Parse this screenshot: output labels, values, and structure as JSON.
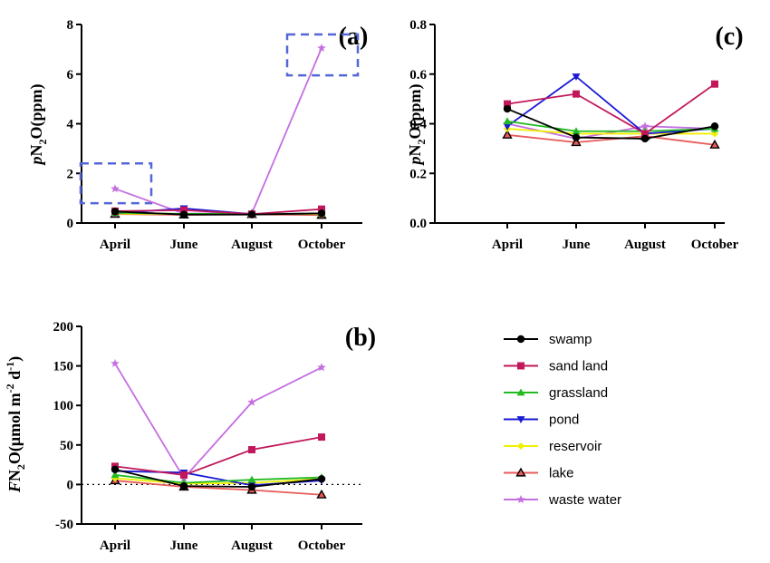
{
  "chart_data": [
    {
      "type": "line",
      "panel": "(a)",
      "ylabel_parts": [
        "p",
        "N",
        "2",
        "O(ppm)"
      ],
      "categories": [
        "April",
        "June",
        "August",
        "October"
      ],
      "ylim": [
        0,
        8
      ],
      "yticks": [
        0,
        2,
        4,
        6,
        8
      ],
      "series": [
        {
          "name": "swamp",
          "values": [
            0.46,
            0.34,
            0.34,
            0.39
          ]
        },
        {
          "name": "sand land",
          "values": [
            0.48,
            0.52,
            0.36,
            0.56
          ]
        },
        {
          "name": "grassland",
          "values": [
            0.41,
            0.37,
            0.37,
            0.38
          ]
        },
        {
          "name": "pond",
          "values": [
            0.39,
            0.59,
            0.36,
            0.38
          ]
        },
        {
          "name": "reservoir",
          "values": [
            0.38,
            0.36,
            0.36,
            0.36
          ]
        },
        {
          "name": "lake",
          "values": [
            0.36,
            0.33,
            0.35,
            0.32
          ]
        },
        {
          "name": "waste water",
          "values": [
            1.38,
            0.38,
            0.39,
            7.05
          ]
        }
      ],
      "highlight_boxes": [
        {
          "x_from": "April",
          "y_range": [
            0.8,
            2.4
          ]
        },
        {
          "x_from": "October",
          "y_range": [
            5.95,
            7.6
          ]
        }
      ]
    },
    {
      "type": "line",
      "panel": "(c)",
      "ylabel_parts": [
        "p",
        "N",
        "2",
        "O(ppm)"
      ],
      "categories": [
        "April",
        "June",
        "August",
        "October"
      ],
      "ylim": [
        0,
        0.8
      ],
      "yticks": [
        "0.0",
        "0.2",
        "0.4",
        "0.6",
        "0.8"
      ],
      "series": [
        {
          "name": "swamp",
          "values": [
            0.46,
            0.345,
            0.34,
            0.39
          ]
        },
        {
          "name": "sand land",
          "values": [
            0.48,
            0.52,
            0.36,
            0.56
          ]
        },
        {
          "name": "grassland",
          "values": [
            0.41,
            0.37,
            0.37,
            0.38
          ]
        },
        {
          "name": "pond",
          "values": [
            0.39,
            0.59,
            0.36,
            0.38
          ]
        },
        {
          "name": "reservoir",
          "values": [
            0.38,
            0.36,
            0.36,
            0.36
          ]
        },
        {
          "name": "lake",
          "values": [
            0.355,
            0.325,
            0.35,
            0.315
          ]
        },
        {
          "name": "waste water",
          "values": [
            0.4,
            0.34,
            0.39,
            0.38
          ]
        }
      ]
    },
    {
      "type": "line",
      "panel": "(b)",
      "ylabel_parts": [
        "F",
        "N",
        "2",
        "O(μmol m",
        "-2",
        " d",
        "-1",
        ")"
      ],
      "categories": [
        "April",
        "June",
        "August",
        "October"
      ],
      "ylim": [
        -50,
        200
      ],
      "yticks": [
        -50,
        0,
        50,
        100,
        150,
        200
      ],
      "zero_line": "dotted",
      "series": [
        {
          "name": "swamp",
          "values": [
            19,
            -2,
            -3,
            7
          ]
        },
        {
          "name": "sand land",
          "values": [
            23,
            12,
            44,
            60
          ]
        },
        {
          "name": "grassland",
          "values": [
            12,
            2,
            6,
            9
          ]
        },
        {
          "name": "pond",
          "values": [
            17,
            15,
            -1,
            5
          ]
        },
        {
          "name": "reservoir",
          "values": [
            8,
            1,
            2,
            7
          ]
        },
        {
          "name": "lake",
          "values": [
            5,
            -3,
            -7,
            -13
          ]
        },
        {
          "name": "waste water",
          "values": [
            153,
            8,
            104,
            148
          ]
        }
      ]
    }
  ],
  "legend": [
    {
      "name": "swamp",
      "color": "#000000",
      "marker": "circle"
    },
    {
      "name": "sand land",
      "color": "#c2185b",
      "marker": "square"
    },
    {
      "name": "grassland",
      "color": "#22bb22",
      "marker": "triangle-up"
    },
    {
      "name": "pond",
      "color": "#1a1ad6",
      "marker": "triangle-down"
    },
    {
      "name": "reservoir",
      "color": "#f0f000",
      "marker": "diamond"
    },
    {
      "name": "lake",
      "color": "#e85a5a",
      "marker": "triangle-outline"
    },
    {
      "name": "waste water",
      "color": "#c46fe0",
      "marker": "star"
    }
  ],
  "highlight_color": "#5567d6"
}
